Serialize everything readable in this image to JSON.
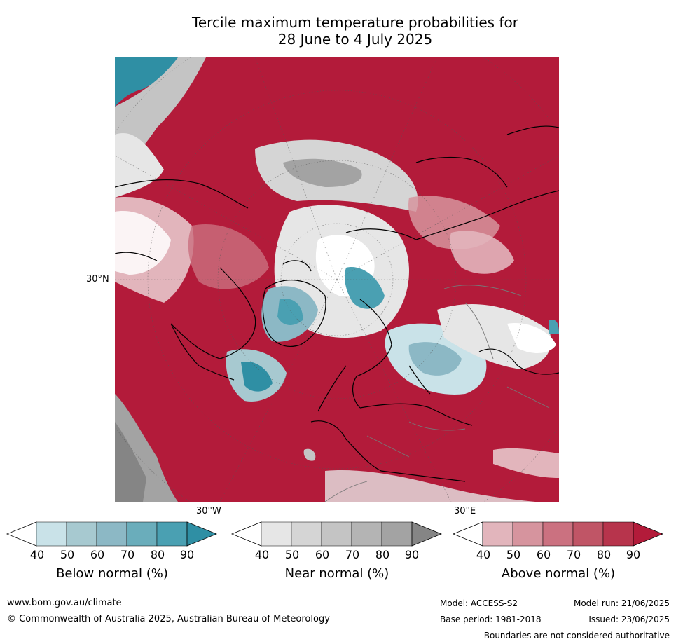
{
  "title_line1": "Tercile maximum temperature probabilities for",
  "title_line2": "28 June to 4 July 2025",
  "map": {
    "lat_label": "30°N",
    "lon_labels": {
      "west": "30°W",
      "east": "30°E"
    }
  },
  "colorbars": [
    {
      "label": "Below normal (%)",
      "ticks": [
        "40",
        "50",
        "60",
        "70",
        "80",
        "90"
      ],
      "colors": [
        "#ffffff",
        "#c9e2e8",
        "#a7c9d0",
        "#8cb8c5",
        "#6aadbb",
        "#4aa0b2",
        "#2f8fa4"
      ]
    },
    {
      "label": "Near normal (%)",
      "ticks": [
        "40",
        "50",
        "60",
        "70",
        "80",
        "90"
      ],
      "colors": [
        "#ffffff",
        "#e6e6e6",
        "#d5d5d5",
        "#c4c4c4",
        "#b4b4b4",
        "#a3a3a3",
        "#858585"
      ]
    },
    {
      "label": "Above normal (%)",
      "ticks": [
        "40",
        "50",
        "60",
        "70",
        "80",
        "90"
      ],
      "colors": [
        "#ffffff",
        "#e2b5bc",
        "#d6949e",
        "#cb7180",
        "#c05566",
        "#b7344c",
        "#b31b3a"
      ]
    }
  ],
  "footer": {
    "url": "www.bom.gov.au/climate",
    "copyright": "© Commonwealth of Australia 2025, Australian Bureau of Meteorology",
    "model": "Model: ACCESS-S2",
    "base_period": "Base period: 1981-2018",
    "model_run": "Model run: 21/06/2025",
    "issued": "Issued: 23/06/2025",
    "disclaimer": "Boundaries are not considered authoritative"
  }
}
